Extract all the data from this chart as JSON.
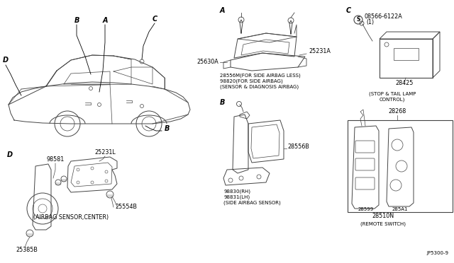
{
  "bg_color": "#ffffff",
  "line_color": "#444444",
  "text_color": "#000000",
  "fig_width": 6.4,
  "fig_height": 3.72,
  "dpi": 100,
  "annotations": {
    "part_25630A": "25630A",
    "part_25231A": "25231A",
    "part_28556M_line1": "28556M(FOR SIDE AIRBAG LESS)",
    "part_28556M_line2": "98820(FOR SIDE AIRBAG)",
    "sensor_diag": "(SENSOR & DIAGNOSIS AIRBAG)",
    "part_08566": "08566-6122A",
    "part_1": "(1)",
    "part_28425": "28425",
    "stop_tail_line1": "(STOP & TAIL LAMP",
    "stop_tail_line2": "CONTROL)",
    "part_28268": "28268",
    "part_28599": "28599",
    "part_285A1": "285A1",
    "part_28510N": "28510N",
    "remote_switch": "(REMOTE SWITCH)",
    "part_98581": "98581",
    "part_25231L": "25231L",
    "part_25385B": "25385B",
    "part_25554B": "25554B",
    "airbag_center": "(AIRBAG SENSOR,CENTER)",
    "part_28556B": "28556B",
    "part_98830": "98830(RH)",
    "part_98831": "98831(LH)",
    "side_airbag": "(SIDE AIRBAG SENSOR)",
    "ref_num": "JP5300-9",
    "label_A": "A",
    "label_B": "B",
    "label_C": "C",
    "label_D": "D"
  }
}
